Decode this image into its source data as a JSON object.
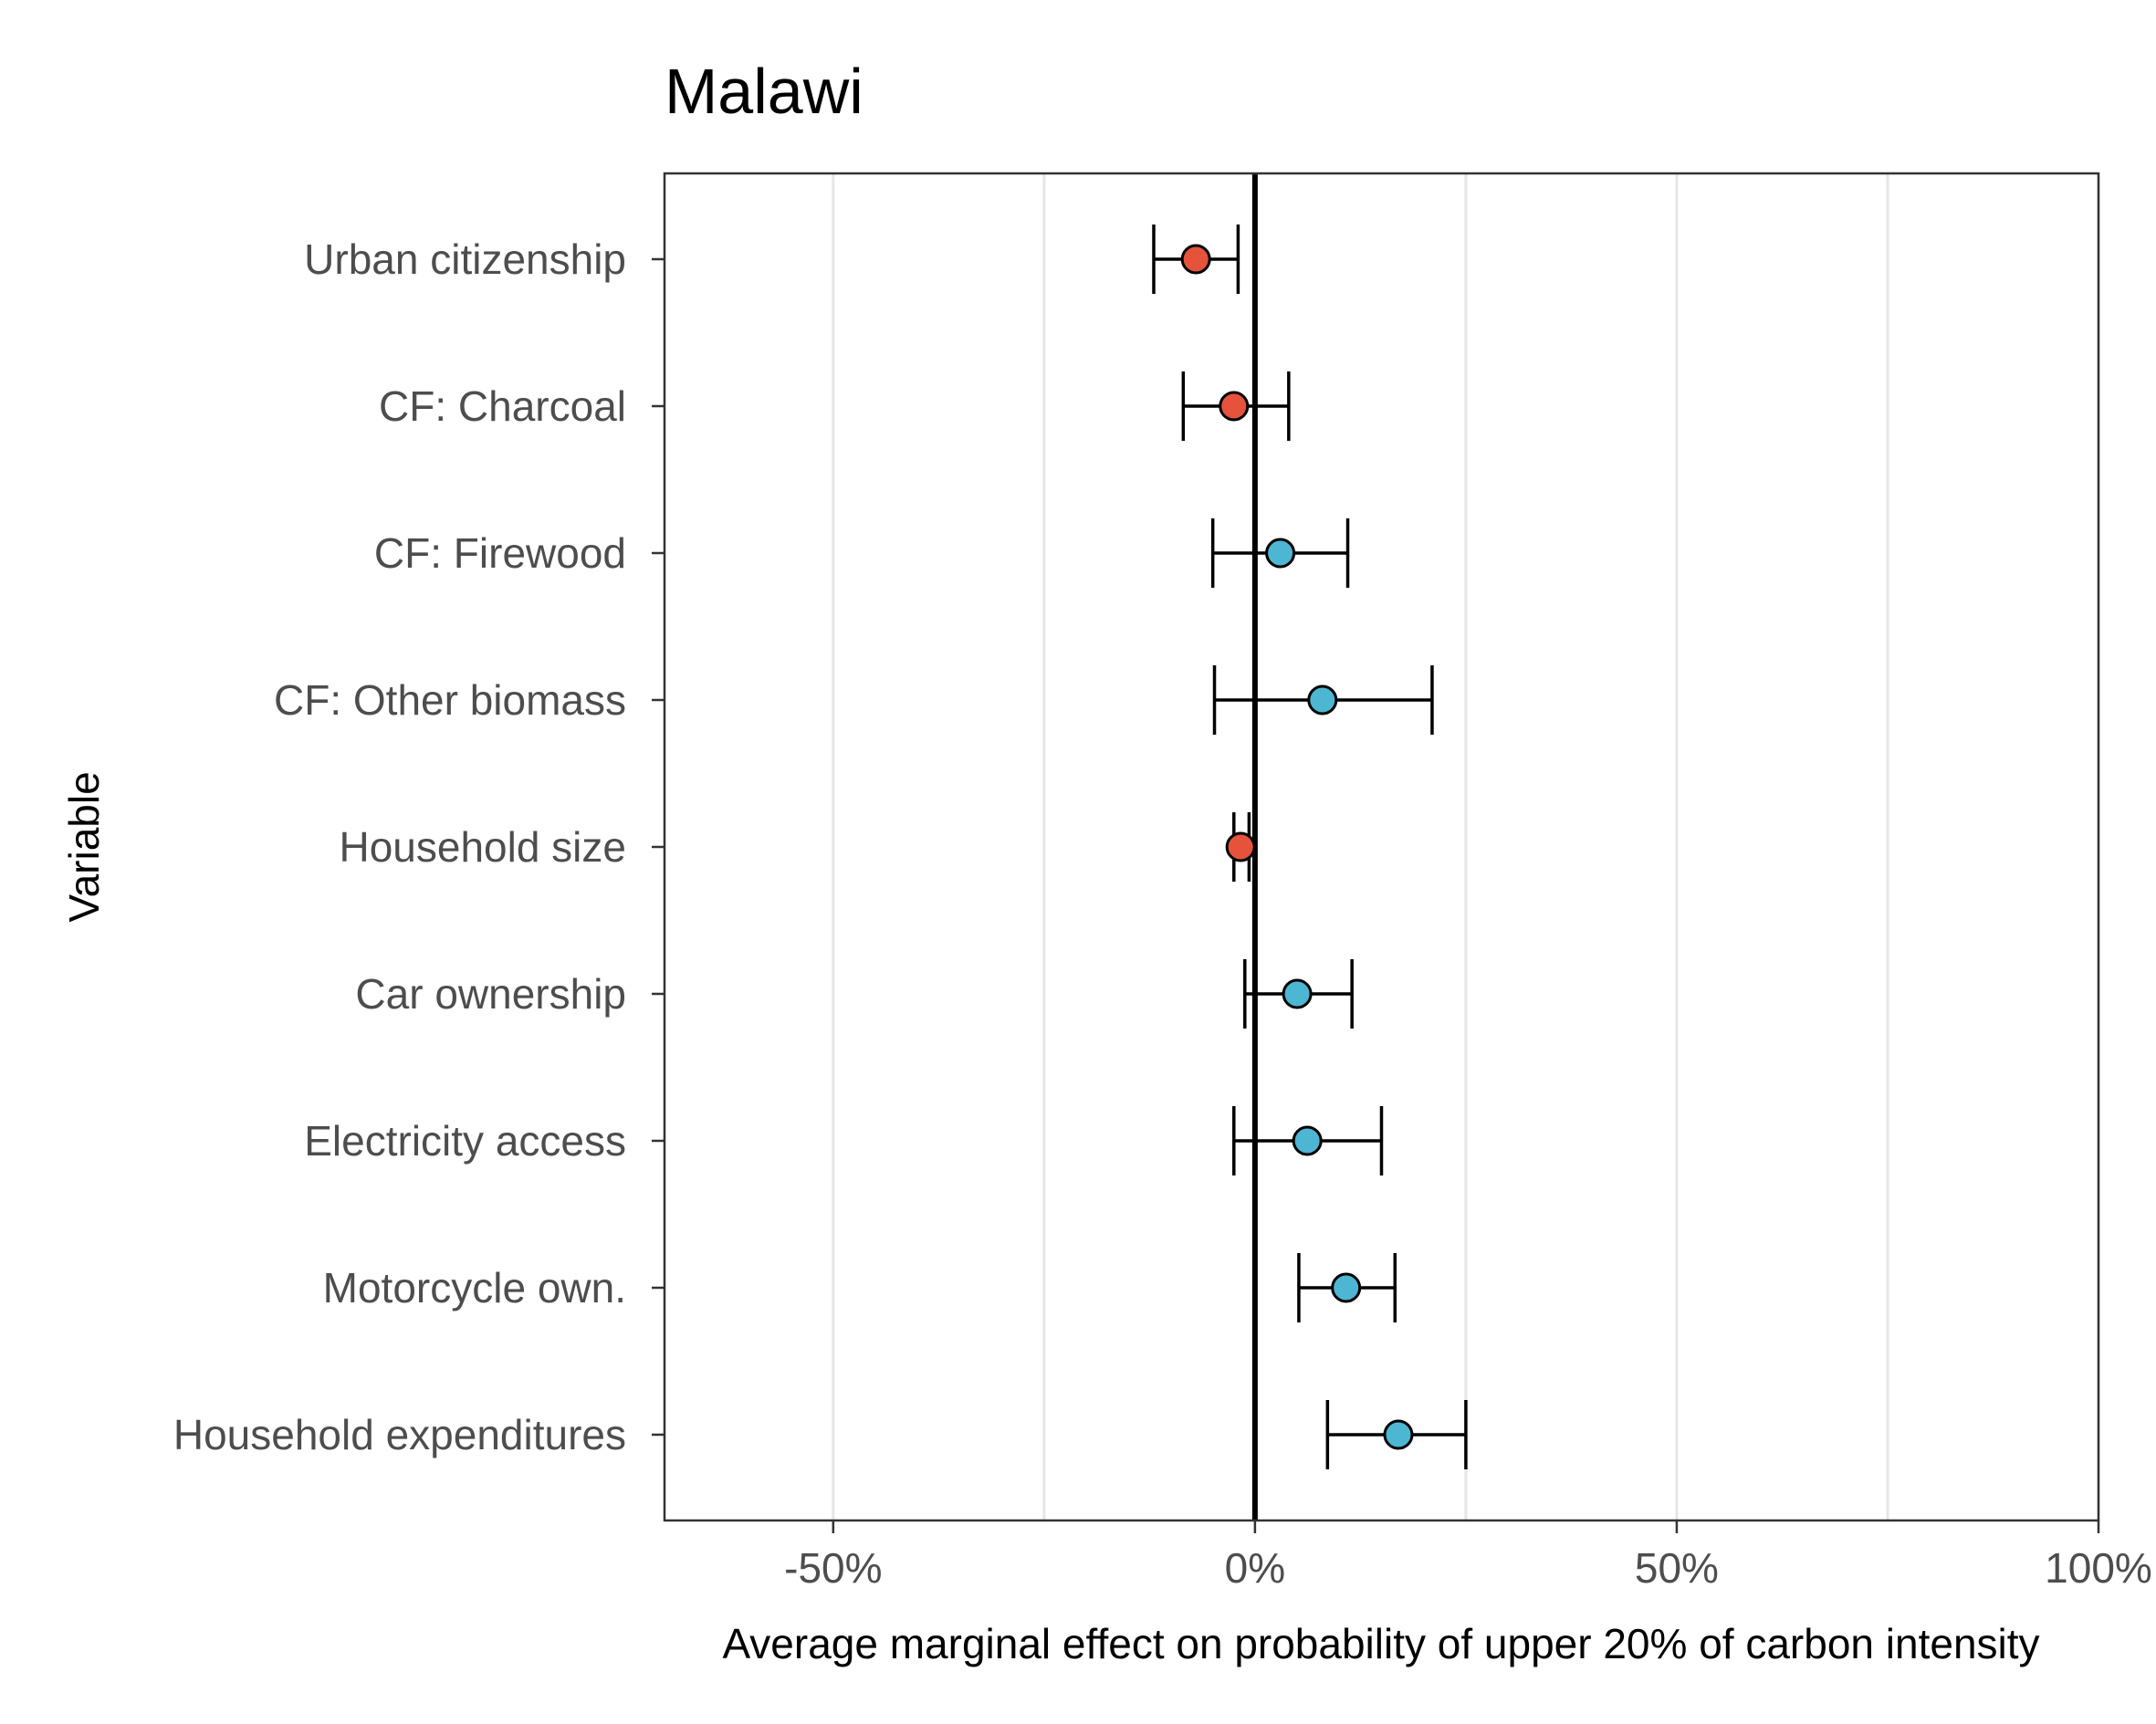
{
  "chart_data": {
    "type": "scatter",
    "subtype": "coefficient-plot-with-error-bars",
    "title": "Malawi",
    "xlabel": "Average marginal effect on probability of upper 20% of carbon intensity",
    "ylabel": "Variable",
    "xlim": [
      -0.7,
      1.0
    ],
    "x_ticks": [
      {
        "value": -0.5,
        "label": "-50%"
      },
      {
        "value": 0.0,
        "label": "0%"
      },
      {
        "value": 0.5,
        "label": "50%"
      },
      {
        "value": 1.0,
        "label": "100%"
      }
    ],
    "minor_grid_x": [
      -0.25,
      0.25,
      0.75
    ],
    "reference_line_x": 0,
    "grid": true,
    "colors": {
      "negative": "#e5533d",
      "positive": "#4db6d3",
      "axis": "#000000",
      "grid": "#e6e6e6"
    },
    "points": [
      {
        "label": "Urban citizenship",
        "estimate": -0.07,
        "lower": -0.12,
        "upper": -0.02,
        "sign": "negative"
      },
      {
        "label": "CF: Charcoal",
        "estimate": -0.025,
        "lower": -0.085,
        "upper": 0.04,
        "sign": "negative"
      },
      {
        "label": "CF: Firewood",
        "estimate": 0.03,
        "lower": -0.05,
        "upper": 0.11,
        "sign": "positive"
      },
      {
        "label": "CF: Other biomass",
        "estimate": 0.08,
        "lower": -0.048,
        "upper": 0.21,
        "sign": "positive"
      },
      {
        "label": "Household size",
        "estimate": -0.017,
        "lower": -0.025,
        "upper": -0.007,
        "sign": "negative"
      },
      {
        "label": "Car ownership",
        "estimate": 0.05,
        "lower": -0.012,
        "upper": 0.115,
        "sign": "positive"
      },
      {
        "label": "Electricity access",
        "estimate": 0.062,
        "lower": -0.025,
        "upper": 0.15,
        "sign": "positive"
      },
      {
        "label": "Motorcycle own.",
        "estimate": 0.108,
        "lower": 0.052,
        "upper": 0.166,
        "sign": "positive"
      },
      {
        "label": "Household expenditures",
        "estimate": 0.17,
        "lower": 0.086,
        "upper": 0.25,
        "sign": "positive"
      }
    ]
  }
}
